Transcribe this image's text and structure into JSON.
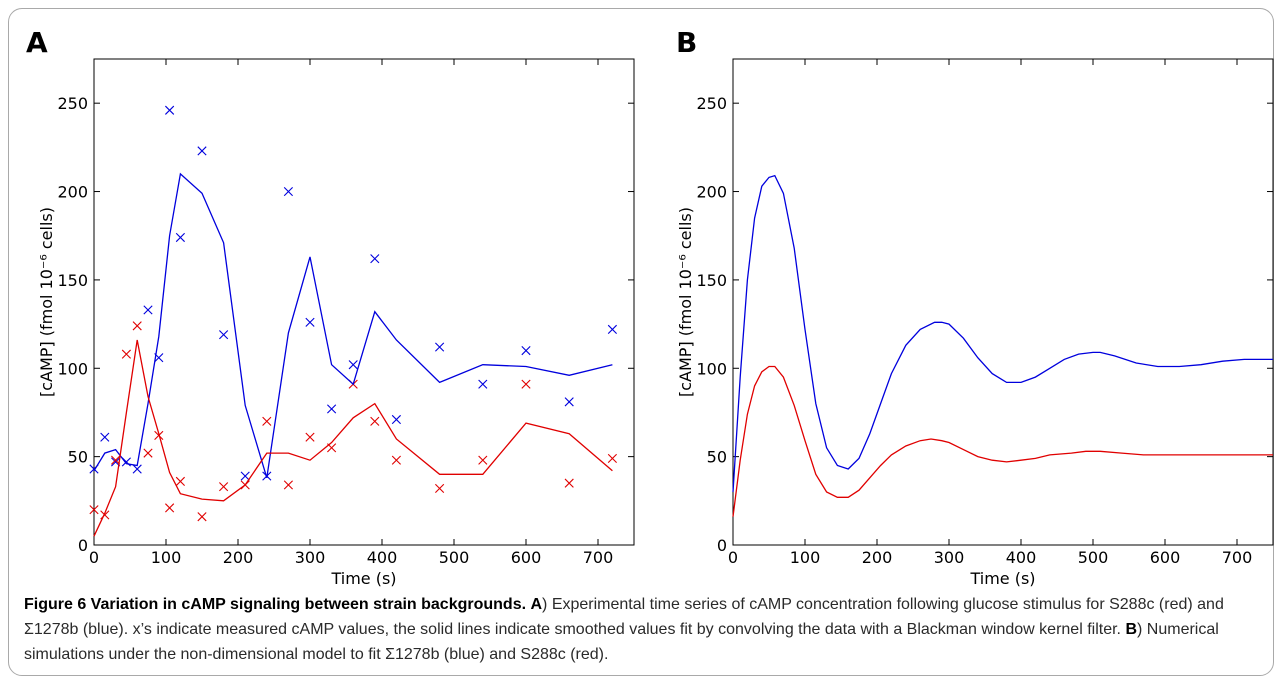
{
  "panels": [
    {
      "letter": "A",
      "xlabel": "Time (s)",
      "ylabel": "[cAMP] (fmol 10⁻⁶ cells)"
    },
    {
      "letter": "B",
      "xlabel": "Time (s)",
      "ylabel": "[cAMP] (fmol 10⁻⁶ cells)"
    }
  ],
  "colors": {
    "blue": "#0000dd",
    "red": "#e00000"
  },
  "caption": {
    "fig_label": "Figure 6 Variation in cAMP signaling between strain backgrounds.",
    "a_label": "A",
    "a_text": ") Experimental time series of cAMP concentration following glucose stimulus for S288c (red) and Σ1278b (blue). x’s indicate measured cAMP values, the solid lines indicate smoothed values fit by convolving the data with a Blackman window kernel filter.",
    "b_label": "B",
    "b_text": ") Numerical simulations under the non-dimensional model to fit Σ1278b (blue) and S288c (red)."
  },
  "chart_data": [
    {
      "type": "scatter",
      "panel": "A",
      "xlabel": "Time (s)",
      "ylabel": "[cAMP] (fmol 10⁻⁶ cells)",
      "xlim": [
        0,
        750
      ],
      "ylim": [
        0,
        275
      ],
      "xticks": [
        0,
        100,
        200,
        300,
        400,
        500,
        600,
        700
      ],
      "yticks": [
        0,
        50,
        100,
        150,
        200,
        250
      ],
      "grid": false,
      "series": [
        {
          "color": "blue",
          "kind": "markers",
          "x": [
            0,
            15,
            30,
            45,
            60,
            75,
            90,
            105,
            120,
            150,
            180,
            210,
            240,
            270,
            300,
            330,
            360,
            390,
            420,
            480,
            540,
            600,
            660,
            720
          ],
          "y": [
            43,
            61,
            47,
            47,
            43,
            133,
            106,
            246,
            174,
            223,
            119,
            39,
            39,
            200,
            126,
            77,
            102,
            162,
            71,
            112,
            91,
            110,
            81,
            122
          ]
        },
        {
          "color": "red",
          "kind": "markers",
          "x": [
            0,
            15,
            30,
            45,
            60,
            75,
            90,
            105,
            120,
            150,
            180,
            210,
            240,
            270,
            300,
            330,
            360,
            390,
            420,
            480,
            540,
            600,
            660,
            720
          ],
          "y": [
            20,
            17,
            48,
            108,
            124,
            52,
            62,
            21,
            36,
            16,
            33,
            34,
            70,
            34,
            61,
            55,
            91,
            70,
            48,
            32,
            48,
            91,
            35,
            49
          ]
        },
        {
          "color": "blue",
          "kind": "line",
          "x": [
            0,
            15,
            30,
            45,
            60,
            75,
            90,
            105,
            120,
            150,
            180,
            210,
            240,
            270,
            300,
            330,
            360,
            390,
            420,
            480,
            540,
            600,
            660,
            720
          ],
          "y": [
            42,
            52,
            54,
            46,
            45,
            80,
            118,
            175,
            210,
            199,
            171,
            79,
            38,
            120,
            163,
            102,
            91,
            132,
            116,
            92,
            102,
            101,
            96,
            102
          ]
        },
        {
          "color": "red",
          "kind": "line",
          "x": [
            0,
            15,
            30,
            45,
            60,
            75,
            90,
            105,
            120,
            150,
            180,
            210,
            240,
            270,
            300,
            330,
            360,
            390,
            420,
            480,
            540,
            600,
            660,
            720
          ],
          "y": [
            5,
            18,
            33,
            75,
            116,
            84,
            63,
            41,
            29,
            26,
            25,
            34,
            52,
            52,
            48,
            58,
            72,
            80,
            60,
            40,
            40,
            69,
            63,
            42
          ]
        }
      ]
    },
    {
      "type": "line",
      "panel": "B",
      "xlabel": "Time (s)",
      "ylabel": "[cAMP] (fmol 10⁻⁶ cells)",
      "xlim": [
        0,
        750
      ],
      "ylim": [
        0,
        275
      ],
      "xticks": [
        0,
        100,
        200,
        300,
        400,
        500,
        600,
        700
      ],
      "yticks": [
        0,
        50,
        100,
        150,
        200,
        250
      ],
      "grid": false,
      "series": [
        {
          "color": "blue",
          "kind": "line",
          "x": [
            0,
            10,
            20,
            30,
            40,
            50,
            58,
            70,
            85,
            100,
            115,
            130,
            145,
            160,
            175,
            190,
            205,
            220,
            240,
            260,
            280,
            290,
            300,
            320,
            340,
            360,
            380,
            400,
            420,
            440,
            460,
            480,
            500,
            510,
            530,
            560,
            590,
            620,
            650,
            680,
            710,
            740,
            750
          ],
          "y": [
            30,
            95,
            150,
            185,
            203,
            208,
            209,
            199,
            168,
            122,
            80,
            55,
            45,
            43,
            49,
            63,
            80,
            97,
            113,
            122,
            126,
            126,
            125,
            117,
            106,
            97,
            92,
            92,
            95,
            100,
            105,
            108,
            109,
            109,
            107,
            103,
            101,
            101,
            102,
            104,
            105,
            105,
            105
          ]
        },
        {
          "color": "red",
          "kind": "line",
          "x": [
            0,
            10,
            20,
            30,
            40,
            50,
            58,
            70,
            85,
            100,
            115,
            130,
            145,
            160,
            175,
            190,
            205,
            220,
            240,
            260,
            275,
            290,
            300,
            320,
            340,
            360,
            380,
            400,
            420,
            440,
            470,
            490,
            510,
            540,
            570,
            600,
            630,
            660,
            690,
            720,
            750
          ],
          "y": [
            16,
            48,
            74,
            90,
            98,
            101,
            101,
            95,
            79,
            59,
            40,
            30,
            27,
            27,
            31,
            38,
            45,
            51,
            56,
            59,
            60,
            59,
            58,
            54,
            50,
            48,
            47,
            48,
            49,
            51,
            52,
            53,
            53,
            52,
            51,
            51,
            51,
            51,
            51,
            51,
            51
          ]
        }
      ]
    }
  ]
}
